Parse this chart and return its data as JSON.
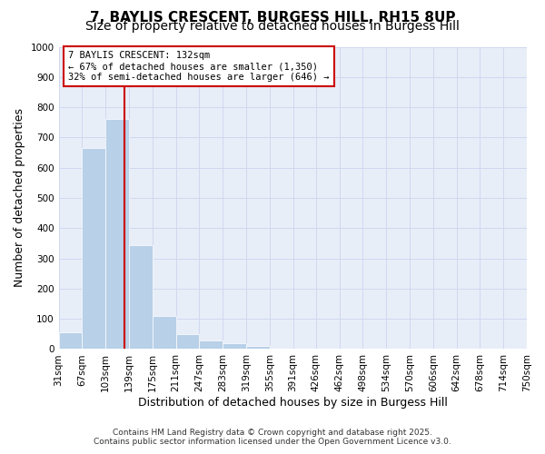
{
  "title_line1": "7, BAYLIS CRESCENT, BURGESS HILL, RH15 8UP",
  "title_line2": "Size of property relative to detached houses in Burgess Hill",
  "xlabel": "Distribution of detached houses by size in Burgess Hill",
  "ylabel": "Number of detached properties",
  "bar_edges": [
    31,
    67,
    103,
    139,
    175,
    211,
    247,
    283,
    319,
    355,
    391,
    426,
    462,
    498,
    534,
    570,
    606,
    642,
    678,
    714,
    750
  ],
  "bar_heights": [
    55,
    665,
    760,
    345,
    110,
    50,
    27,
    18,
    10,
    0,
    0,
    0,
    0,
    0,
    0,
    0,
    0,
    0,
    0,
    0
  ],
  "bar_color": "#b8d0e8",
  "vline_x": 132,
  "vline_color": "#cc0000",
  "ylim": [
    0,
    1000
  ],
  "yticks": [
    0,
    100,
    200,
    300,
    400,
    500,
    600,
    700,
    800,
    900,
    1000
  ],
  "xlim": [
    31,
    750
  ],
  "xtick_labels": [
    "31sqm",
    "67sqm",
    "103sqm",
    "139sqm",
    "175sqm",
    "211sqm",
    "247sqm",
    "283sqm",
    "319sqm",
    "355sqm",
    "391sqm",
    "426sqm",
    "462sqm",
    "498sqm",
    "534sqm",
    "570sqm",
    "606sqm",
    "642sqm",
    "678sqm",
    "714sqm",
    "750sqm"
  ],
  "xtick_positions": [
    31,
    67,
    103,
    139,
    175,
    211,
    247,
    283,
    319,
    355,
    391,
    426,
    462,
    498,
    534,
    570,
    606,
    642,
    678,
    714,
    750
  ],
  "annotation_line1": "7 BAYLIS CRESCENT: 132sqm",
  "annotation_line2": "← 67% of detached houses are smaller (1,350)",
  "annotation_line3": "32% of semi-detached houses are larger (646) →",
  "grid_color": "#d0d8f0",
  "background_color": "#e8eef8",
  "footnote1": "Contains HM Land Registry data © Crown copyright and database right 2025.",
  "footnote2": "Contains public sector information licensed under the Open Government Licence v3.0.",
  "title_fontsize": 11,
  "subtitle_fontsize": 10,
  "axis_label_fontsize": 9,
  "tick_fontsize": 7.5,
  "annotation_fontsize": 7.5,
  "footnote_fontsize": 6.5
}
